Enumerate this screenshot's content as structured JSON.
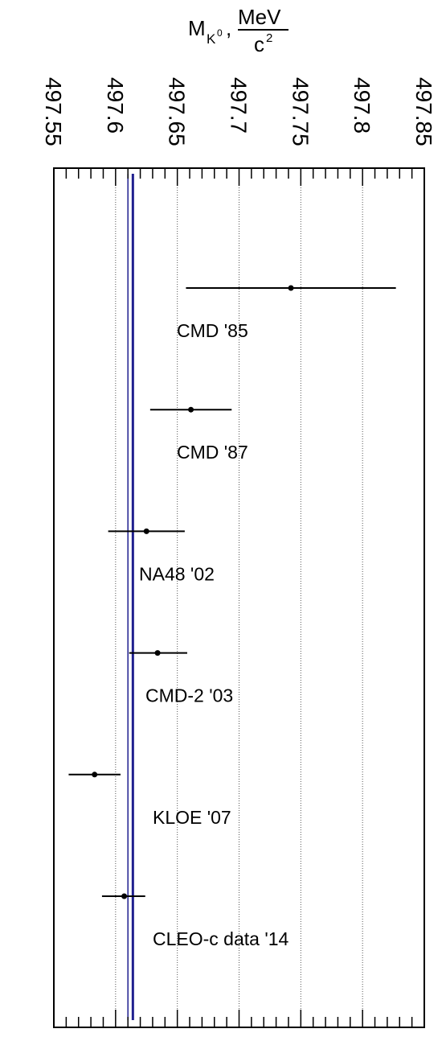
{
  "chart_data": {
    "type": "scatter",
    "orientation": "horizontal-errorbars",
    "title": {
      "symbol": "M",
      "subscript": "K",
      "superscript": "0",
      "separator": ",",
      "unit_numerator": "MeV",
      "unit_denominator": "c",
      "unit_denominator_power": "2"
    },
    "xlim": [
      497.55,
      497.85
    ],
    "x_ticks": [
      "497.55",
      "497.6",
      "497.65",
      "497.7",
      "497.75",
      "497.8",
      "497.85"
    ],
    "x_tick_values": [
      497.55,
      497.6,
      497.65,
      497.7,
      497.75,
      497.8,
      497.85
    ],
    "grid": "vertical dotted",
    "average": {
      "value": 497.614,
      "band": [
        497.61,
        497.614
      ]
    },
    "points": [
      {
        "label": "CMD '85",
        "x": 497.742,
        "err_lo": 497.657,
        "err_hi": 497.827
      },
      {
        "label": "CMD '87",
        "x": 497.661,
        "err_lo": 497.628,
        "err_hi": 497.694
      },
      {
        "label": "NA48 '02",
        "x": 497.625,
        "err_lo": 497.594,
        "err_hi": 497.656
      },
      {
        "label": "CMD-2 '03",
        "x": 497.634,
        "err_lo": 497.611,
        "err_hi": 497.658
      },
      {
        "label": "KLOE '07",
        "x": 497.583,
        "err_lo": 497.562,
        "err_hi": 497.604
      },
      {
        "label": "CLEO-c data '14",
        "x": 497.607,
        "err_lo": 497.589,
        "err_hi": 497.624
      }
    ],
    "colors": {
      "average_line": "#1f1f8f",
      "marks": "#000000"
    }
  }
}
